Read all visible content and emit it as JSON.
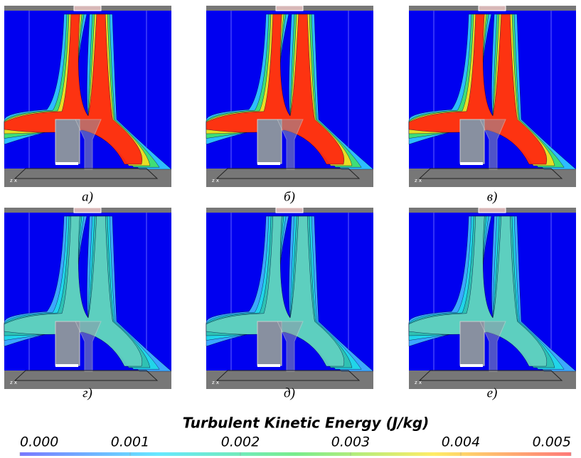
{
  "panels": [
    {
      "label": "а)"
    },
    {
      "label": "б)"
    },
    {
      "label": "в)"
    },
    {
      "label": "г)"
    },
    {
      "label": "д)"
    },
    {
      "label": "е)"
    }
  ],
  "colorbar": {
    "title": "Turbulent Kinetic Energy (J/kg)",
    "lim": [
      0,
      0.005
    ],
    "ticks": [
      {
        "value": 0,
        "label": "0.000"
      },
      {
        "value": 0.001,
        "label": "0.001"
      },
      {
        "value": 0.002,
        "label": "0.002"
      },
      {
        "value": 0.003,
        "label": "0.003"
      },
      {
        "value": 0.004,
        "label": "0.004"
      },
      {
        "value": 0.005,
        "label": "0.005"
      }
    ]
  }
}
